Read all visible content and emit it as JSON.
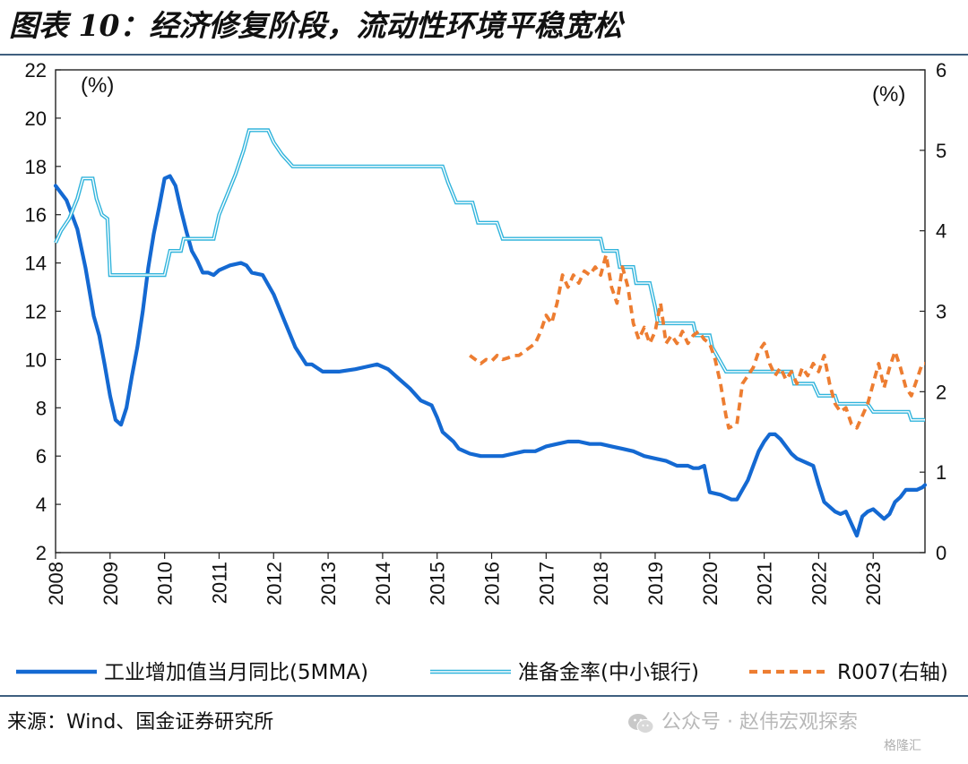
{
  "title": "图表 10：经济修复阶段，流动性环境平稳宽松",
  "source": "来源：Wind、国金证券研究所",
  "watermark": "公众号 · 赵伟宏观探索",
  "watermark_icon": "wechat-icon",
  "corner_logo": "格隆汇",
  "colors": {
    "industrial": "#1469d2",
    "rrr": "#31b4dc",
    "r007": "#ed7d31",
    "rule": "#3f5f7f"
  },
  "chart_data": {
    "type": "line",
    "title": "图表 10：经济修复阶段，流动性环境平稳宽松",
    "y_left": {
      "unit": "(%)",
      "range": [
        2,
        22
      ],
      "ticks": [
        2,
        4,
        6,
        8,
        10,
        12,
        14,
        16,
        18,
        20,
        22
      ]
    },
    "y_right": {
      "unit": "(%)",
      "range": [
        0,
        6
      ],
      "ticks": [
        0,
        1,
        2,
        3,
        4,
        5,
        6
      ]
    },
    "x_range": [
      2008.0,
      2023.95
    ],
    "x_ticks": [
      "2008",
      "2009",
      "2010",
      "2011",
      "2012",
      "2013",
      "2014",
      "2015",
      "2016",
      "2017",
      "2018",
      "2019",
      "2020",
      "2021",
      "2022",
      "2023"
    ],
    "grid": false,
    "legend_position": "bottom",
    "series": [
      {
        "name": "工业增加值当月同比(5MMA)",
        "axis": "left",
        "style": "solid-thick",
        "points": [
          [
            2008.0,
            17.2
          ],
          [
            2008.2,
            16.6
          ],
          [
            2008.4,
            15.4
          ],
          [
            2008.55,
            13.8
          ],
          [
            2008.7,
            11.8
          ],
          [
            2008.8,
            11.0
          ],
          [
            2008.9,
            9.8
          ],
          [
            2009.0,
            8.5
          ],
          [
            2009.1,
            7.5
          ],
          [
            2009.2,
            7.3
          ],
          [
            2009.3,
            8.0
          ],
          [
            2009.4,
            9.3
          ],
          [
            2009.5,
            10.5
          ],
          [
            2009.6,
            12.0
          ],
          [
            2009.7,
            13.8
          ],
          [
            2009.8,
            15.2
          ],
          [
            2009.9,
            16.3
          ],
          [
            2010.0,
            17.5
          ],
          [
            2010.1,
            17.6
          ],
          [
            2010.2,
            17.2
          ],
          [
            2010.3,
            16.2
          ],
          [
            2010.4,
            15.3
          ],
          [
            2010.5,
            14.5
          ],
          [
            2010.6,
            14.1
          ],
          [
            2010.7,
            13.6
          ],
          [
            2010.8,
            13.6
          ],
          [
            2010.9,
            13.5
          ],
          [
            2011.0,
            13.7
          ],
          [
            2011.2,
            13.9
          ],
          [
            2011.4,
            14.0
          ],
          [
            2011.5,
            13.9
          ],
          [
            2011.6,
            13.6
          ],
          [
            2011.8,
            13.5
          ],
          [
            2012.0,
            12.7
          ],
          [
            2012.2,
            11.6
          ],
          [
            2012.4,
            10.5
          ],
          [
            2012.6,
            9.8
          ],
          [
            2012.7,
            9.8
          ],
          [
            2012.9,
            9.5
          ],
          [
            2013.2,
            9.5
          ],
          [
            2013.5,
            9.6
          ],
          [
            2013.7,
            9.7
          ],
          [
            2013.9,
            9.8
          ],
          [
            2014.1,
            9.6
          ],
          [
            2014.3,
            9.2
          ],
          [
            2014.5,
            8.8
          ],
          [
            2014.7,
            8.3
          ],
          [
            2014.9,
            8.1
          ],
          [
            2015.0,
            7.6
          ],
          [
            2015.1,
            7.0
          ],
          [
            2015.3,
            6.6
          ],
          [
            2015.4,
            6.3
          ],
          [
            2015.5,
            6.2
          ],
          [
            2015.6,
            6.1
          ],
          [
            2015.8,
            6.0
          ],
          [
            2016.0,
            6.0
          ],
          [
            2016.2,
            6.0
          ],
          [
            2016.4,
            6.1
          ],
          [
            2016.6,
            6.2
          ],
          [
            2016.8,
            6.2
          ],
          [
            2017.0,
            6.4
          ],
          [
            2017.2,
            6.5
          ],
          [
            2017.4,
            6.6
          ],
          [
            2017.6,
            6.6
          ],
          [
            2017.8,
            6.5
          ],
          [
            2018.0,
            6.5
          ],
          [
            2018.2,
            6.4
          ],
          [
            2018.4,
            6.3
          ],
          [
            2018.6,
            6.2
          ],
          [
            2018.8,
            6.0
          ],
          [
            2019.0,
            5.9
          ],
          [
            2019.2,
            5.8
          ],
          [
            2019.4,
            5.6
          ],
          [
            2019.6,
            5.6
          ],
          [
            2019.7,
            5.5
          ],
          [
            2019.8,
            5.5
          ],
          [
            2019.9,
            5.6
          ],
          [
            2020.0,
            4.5
          ],
          [
            2020.2,
            4.4
          ],
          [
            2020.4,
            4.2
          ],
          [
            2020.5,
            4.2
          ],
          [
            2020.6,
            4.6
          ],
          [
            2020.7,
            5.0
          ],
          [
            2020.8,
            5.6
          ],
          [
            2020.9,
            6.2
          ],
          [
            2021.0,
            6.6
          ],
          [
            2021.1,
            6.9
          ],
          [
            2021.2,
            6.9
          ],
          [
            2021.3,
            6.7
          ],
          [
            2021.4,
            6.4
          ],
          [
            2021.5,
            6.1
          ],
          [
            2021.6,
            5.9
          ],
          [
            2021.8,
            5.7
          ],
          [
            2021.9,
            5.6
          ],
          [
            2022.0,
            4.8
          ],
          [
            2022.1,
            4.1
          ],
          [
            2022.2,
            3.9
          ],
          [
            2022.3,
            3.7
          ],
          [
            2022.4,
            3.6
          ],
          [
            2022.5,
            3.7
          ],
          [
            2022.6,
            3.2
          ],
          [
            2022.7,
            2.7
          ],
          [
            2022.8,
            3.5
          ],
          [
            2022.9,
            3.7
          ],
          [
            2023.0,
            3.8
          ],
          [
            2023.1,
            3.6
          ],
          [
            2023.2,
            3.4
          ],
          [
            2023.3,
            3.6
          ],
          [
            2023.4,
            4.1
          ],
          [
            2023.5,
            4.3
          ],
          [
            2023.6,
            4.6
          ],
          [
            2023.7,
            4.6
          ],
          [
            2023.8,
            4.6
          ],
          [
            2023.9,
            4.7
          ],
          [
            2023.95,
            4.8
          ]
        ]
      },
      {
        "name": "准备金率(中小银行)",
        "axis": "right",
        "style": "double-line",
        "points": [
          [
            2008.0,
            3.85
          ],
          [
            2008.1,
            4.0
          ],
          [
            2008.25,
            4.15
          ],
          [
            2008.4,
            4.4
          ],
          [
            2008.5,
            4.65
          ],
          [
            2008.68,
            4.65
          ],
          [
            2008.75,
            4.4
          ],
          [
            2008.85,
            4.2
          ],
          [
            2008.95,
            4.15
          ],
          [
            2009.0,
            3.45
          ],
          [
            2010.0,
            3.45
          ],
          [
            2010.1,
            3.75
          ],
          [
            2010.3,
            3.75
          ],
          [
            2010.35,
            3.9
          ],
          [
            2010.9,
            3.9
          ],
          [
            2011.0,
            4.2
          ],
          [
            2011.15,
            4.45
          ],
          [
            2011.3,
            4.7
          ],
          [
            2011.45,
            5.0
          ],
          [
            2011.55,
            5.25
          ],
          [
            2011.9,
            5.25
          ],
          [
            2012.0,
            5.1
          ],
          [
            2012.15,
            4.95
          ],
          [
            2012.35,
            4.8
          ],
          [
            2015.1,
            4.8
          ],
          [
            2015.2,
            4.6
          ],
          [
            2015.35,
            4.35
          ],
          [
            2015.65,
            4.35
          ],
          [
            2015.75,
            4.1
          ],
          [
            2016.1,
            4.1
          ],
          [
            2016.2,
            3.9
          ],
          [
            2018.0,
            3.9
          ],
          [
            2018.05,
            3.75
          ],
          [
            2018.3,
            3.75
          ],
          [
            2018.35,
            3.55
          ],
          [
            2018.6,
            3.55
          ],
          [
            2018.65,
            3.35
          ],
          [
            2018.9,
            3.35
          ],
          [
            2019.0,
            3.05
          ],
          [
            2019.05,
            2.85
          ],
          [
            2019.7,
            2.85
          ],
          [
            2019.75,
            2.7
          ],
          [
            2020.0,
            2.7
          ],
          [
            2020.05,
            2.55
          ],
          [
            2020.3,
            2.25
          ],
          [
            2021.5,
            2.25
          ],
          [
            2021.55,
            2.1
          ],
          [
            2021.9,
            2.1
          ],
          [
            2022.0,
            1.95
          ],
          [
            2022.3,
            1.95
          ],
          [
            2022.35,
            1.85
          ],
          [
            2022.9,
            1.85
          ],
          [
            2023.0,
            1.75
          ],
          [
            2023.65,
            1.75
          ],
          [
            2023.7,
            1.65
          ],
          [
            2023.95,
            1.65
          ]
        ]
      },
      {
        "name": "R007(右轴)",
        "axis": "right",
        "style": "dashed",
        "points": [
          [
            2015.6,
            2.45
          ],
          [
            2015.7,
            2.4
          ],
          [
            2015.8,
            2.35
          ],
          [
            2015.9,
            2.4
          ],
          [
            2016.0,
            2.38
          ],
          [
            2016.1,
            2.45
          ],
          [
            2016.2,
            2.4
          ],
          [
            2016.3,
            2.42
          ],
          [
            2016.4,
            2.45
          ],
          [
            2016.5,
            2.45
          ],
          [
            2016.6,
            2.5
          ],
          [
            2016.7,
            2.55
          ],
          [
            2016.8,
            2.6
          ],
          [
            2016.9,
            2.75
          ],
          [
            2017.0,
            2.95
          ],
          [
            2017.1,
            2.85
          ],
          [
            2017.2,
            3.1
          ],
          [
            2017.3,
            3.45
          ],
          [
            2017.4,
            3.3
          ],
          [
            2017.5,
            3.45
          ],
          [
            2017.6,
            3.35
          ],
          [
            2017.7,
            3.5
          ],
          [
            2017.8,
            3.45
          ],
          [
            2017.9,
            3.55
          ],
          [
            2018.0,
            3.45
          ],
          [
            2018.1,
            3.7
          ],
          [
            2018.2,
            3.3
          ],
          [
            2018.3,
            3.1
          ],
          [
            2018.4,
            3.55
          ],
          [
            2018.5,
            3.3
          ],
          [
            2018.6,
            2.85
          ],
          [
            2018.7,
            2.65
          ],
          [
            2018.8,
            2.8
          ],
          [
            2018.9,
            2.6
          ],
          [
            2019.0,
            2.75
          ],
          [
            2019.1,
            3.1
          ],
          [
            2019.2,
            2.6
          ],
          [
            2019.3,
            2.7
          ],
          [
            2019.4,
            2.6
          ],
          [
            2019.5,
            2.75
          ],
          [
            2019.6,
            2.6
          ],
          [
            2019.7,
            2.7
          ],
          [
            2019.8,
            2.75
          ],
          [
            2019.9,
            2.65
          ],
          [
            2020.0,
            2.6
          ],
          [
            2020.1,
            2.4
          ],
          [
            2020.2,
            2.1
          ],
          [
            2020.3,
            1.7
          ],
          [
            2020.35,
            1.55
          ],
          [
            2020.5,
            1.6
          ],
          [
            2020.6,
            2.1
          ],
          [
            2020.7,
            2.2
          ],
          [
            2020.8,
            2.3
          ],
          [
            2020.9,
            2.5
          ],
          [
            2021.0,
            2.6
          ],
          [
            2021.1,
            2.35
          ],
          [
            2021.2,
            2.2
          ],
          [
            2021.3,
            2.3
          ],
          [
            2021.4,
            2.15
          ],
          [
            2021.5,
            2.25
          ],
          [
            2021.6,
            2.1
          ],
          [
            2021.7,
            2.3
          ],
          [
            2021.8,
            2.2
          ],
          [
            2021.9,
            2.35
          ],
          [
            2022.0,
            2.25
          ],
          [
            2022.1,
            2.45
          ],
          [
            2022.2,
            2.1
          ],
          [
            2022.3,
            1.85
          ],
          [
            2022.4,
            1.75
          ],
          [
            2022.5,
            1.8
          ],
          [
            2022.6,
            1.6
          ],
          [
            2022.7,
            1.55
          ],
          [
            2022.8,
            1.7
          ],
          [
            2022.9,
            1.85
          ],
          [
            2023.0,
            2.1
          ],
          [
            2023.1,
            2.35
          ],
          [
            2023.2,
            2.05
          ],
          [
            2023.3,
            2.3
          ],
          [
            2023.4,
            2.5
          ],
          [
            2023.5,
            2.3
          ],
          [
            2023.6,
            2.05
          ],
          [
            2023.7,
            1.95
          ],
          [
            2023.8,
            2.15
          ],
          [
            2023.9,
            2.35
          ],
          [
            2023.95,
            2.35
          ]
        ]
      }
    ]
  }
}
